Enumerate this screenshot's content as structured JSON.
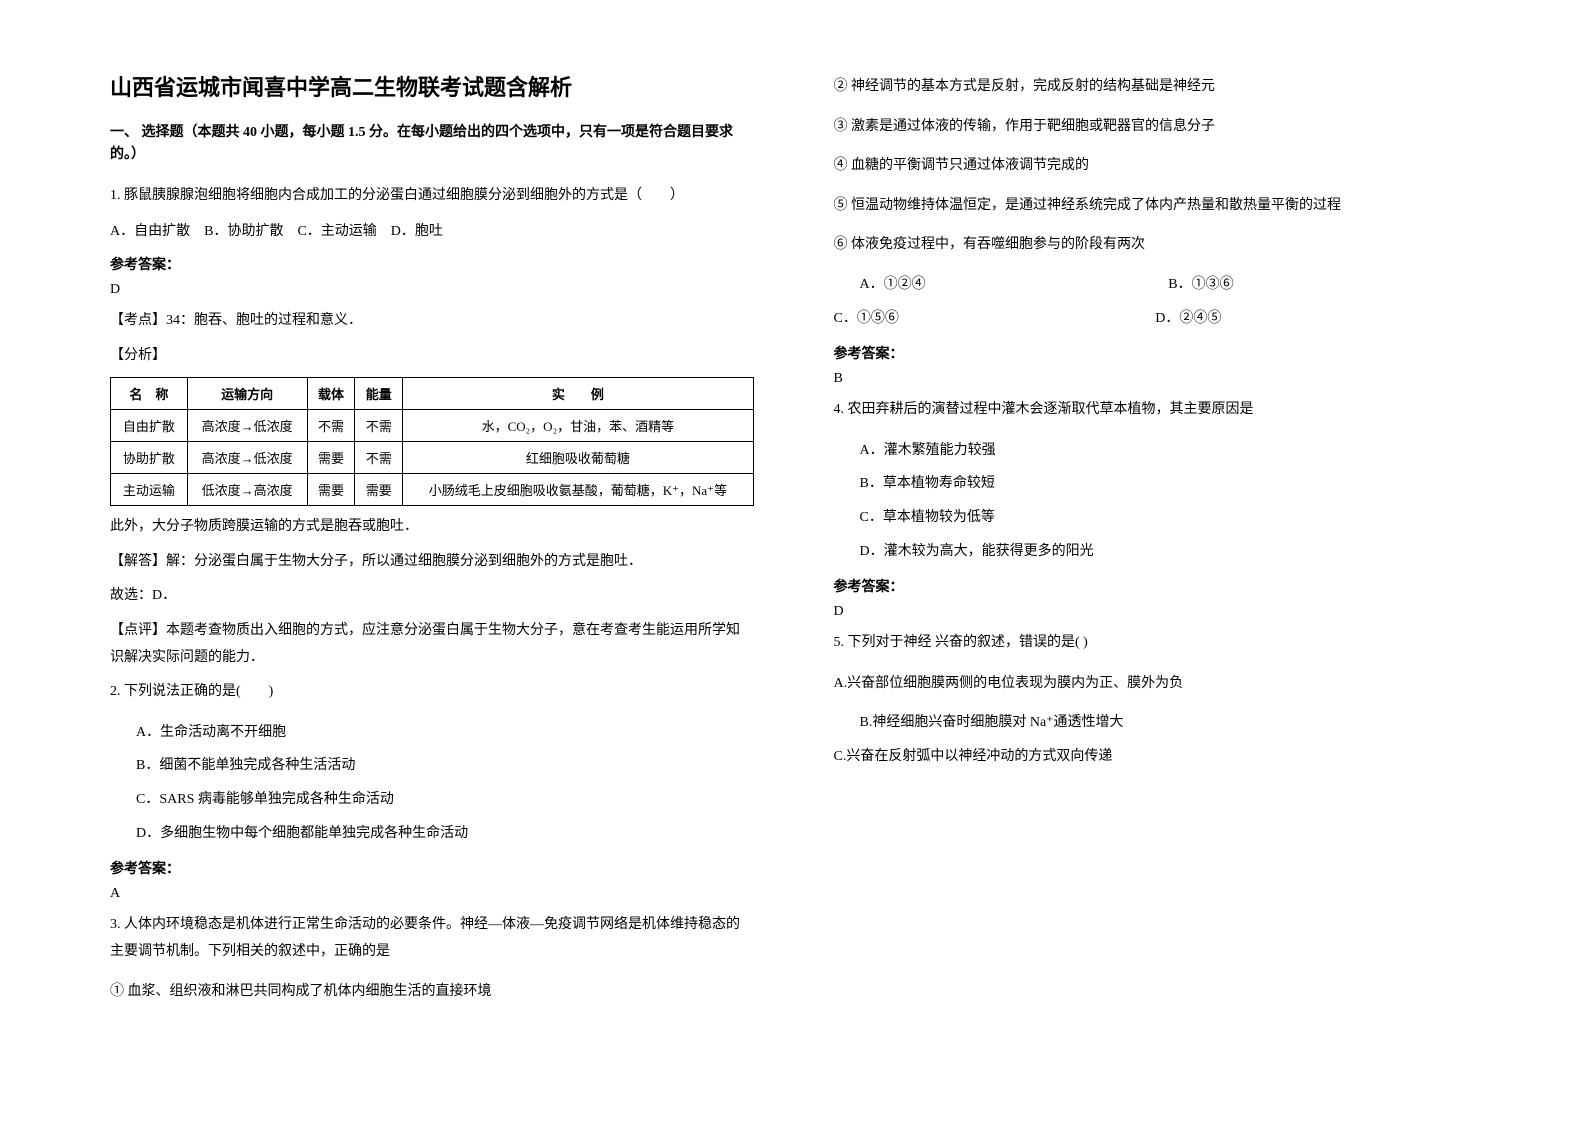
{
  "title": "山西省运城市闻喜中学高二生物联考试题含解析",
  "section1_header": "一、 选择题（本题共 40 小题，每小题 1.5 分。在每小题给出的四个选项中，只有一项是符合题目要求的。）",
  "q1": {
    "text": "1. 豚鼠胰腺腺泡细胞将细胞内合成加工的分泌蛋白通过细胞膜分泌到细胞外的方式是（　　）",
    "options": "A．自由扩散　B．协助扩散　C．主动运输　D．胞吐",
    "answer_label": "参考答案：",
    "answer": "D",
    "tag1": "【考点】34：胞吞、胞吐的过程和意义．",
    "tag2": "【分析】",
    "table": {
      "headers": [
        "名　称",
        "运输方向",
        "载体",
        "能量",
        "实　　例"
      ],
      "rows": [
        [
          "自由扩散",
          "高浓度→低浓度",
          "不需",
          "不需",
          "水，CO₂，O₂，甘油，苯、酒精等"
        ],
        [
          "协助扩散",
          "高浓度→低浓度",
          "需要",
          "不需",
          "红细胞吸收葡萄糖"
        ],
        [
          "主动运输",
          "低浓度→高浓度",
          "需要",
          "需要",
          "小肠绒毛上皮细胞吸收氨基酸，葡萄糖，K⁺，Na⁺等"
        ]
      ]
    },
    "post1": "此外，大分子物质跨膜运输的方式是胞吞或胞吐．",
    "post2": "【解答】解：分泌蛋白属于生物大分子，所以通过细胞膜分泌到细胞外的方式是胞吐．",
    "post3": "故选：D．",
    "post4": "【点评】本题考查物质出入细胞的方式，应注意分泌蛋白属于生物大分子，意在考查考生能运用所学知识解决实际问题的能力．"
  },
  "q2": {
    "text": "2. 下列说法正确的是(　　)",
    "optA": "A．生命活动离不开细胞",
    "optB": "B．细菌不能单独完成各种生活活动",
    "optC": "C．SARS 病毒能够单独完成各种生命活动",
    "optD": "D．多细胞生物中每个细胞都能单独完成各种生命活动",
    "answer_label": "参考答案：",
    "answer": "A"
  },
  "q3": {
    "text": "3. 人体内环境稳态是机体进行正常生命活动的必要条件。神经—体液—免疫调节网络是机体维持稳态的主要调节机制。下列相关的叙述中，正确的是",
    "c1": "① 血浆、组织液和淋巴共同构成了机体内细胞生活的直接环境",
    "c2": "② 神经调节的基本方式是反射，完成反射的结构基础是神经元",
    "c3": "③ 激素是通过体液的传输，作用于靶细胞或靶器官的信息分子",
    "c4": "④ 血糖的平衡调节只通过体液调节完成的",
    "c5": "⑤ 恒温动物维持体温恒定，是通过神经系统完成了体内产热量和散热量平衡的过程",
    "c6": "⑥ 体液免疫过程中，有吞噬细胞参与的阶段有两次",
    "optA": "A．①②④",
    "optB": "B．①③⑥",
    "optC": "C．①⑤⑥",
    "optD": "D．②④⑤",
    "answer_label": "参考答案：",
    "answer": "B"
  },
  "q4": {
    "text": "4. 农田弃耕后的演替过程中灌木会逐渐取代草本植物，其主要原因是",
    "optA": "A．灌木繁殖能力较强",
    "optB": "B．草本植物寿命较短",
    "optC": "C．草本植物较为低等",
    "optD": "D．灌木较为高大，能获得更多的阳光",
    "answer_label": "参考答案：",
    "answer": "D"
  },
  "q5": {
    "text": "5. 下列对于神经 兴奋的叙述，错误的是(  )",
    "optA": "A.兴奋部位细胞膜两侧的电位表现为膜内为正、膜外为负",
    "optB": "B.神经细胞兴奋时细胞膜对 Na⁺通透性增大",
    "optC": "C.兴奋在反射弧中以神经冲动的方式双向传递"
  }
}
